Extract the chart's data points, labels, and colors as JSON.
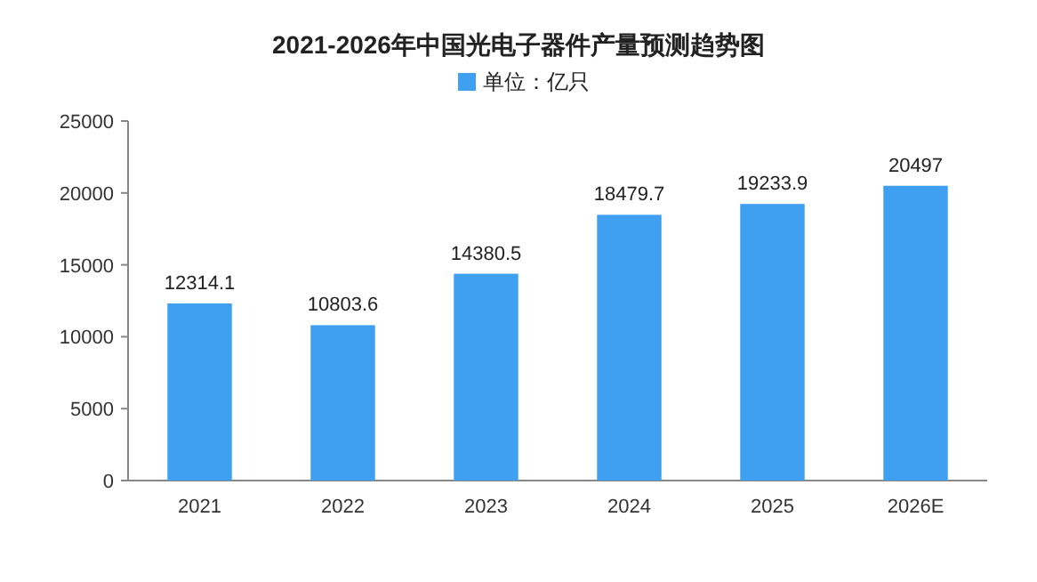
{
  "chart_data": {
    "type": "bar",
    "title": "2021-2026年中国光电子器件产量预测趋势图",
    "categories": [
      "2021",
      "2022",
      "2023",
      "2024",
      "2025",
      "2026E"
    ],
    "series": [
      {
        "name": "单位：亿只",
        "color": "#3f9ff0",
        "values": [
          12314.1,
          10803.6,
          14380.5,
          18479.7,
          19233.9,
          20497
        ]
      }
    ],
    "ylim": [
      0,
      25000
    ],
    "yticks": [
      0,
      5000,
      10000,
      15000,
      20000,
      25000
    ],
    "data_labels": true,
    "legend": "top",
    "grid": false
  }
}
